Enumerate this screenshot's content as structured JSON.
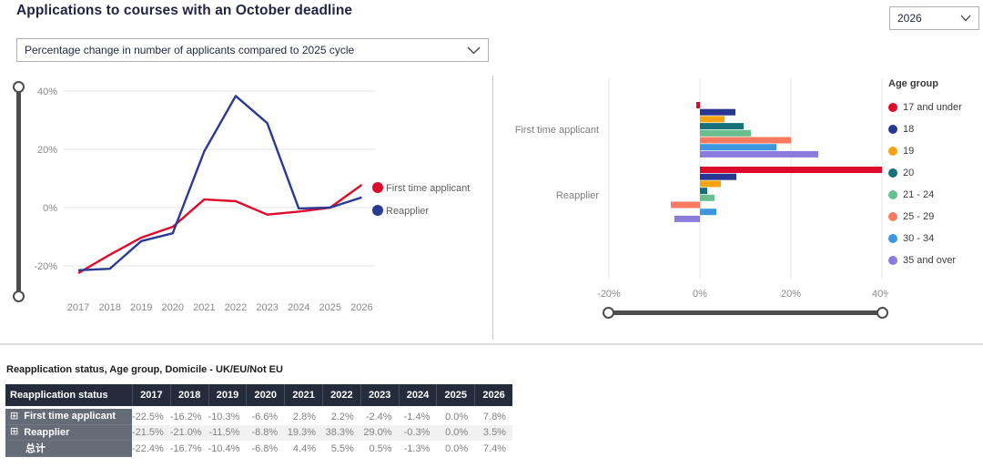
{
  "header": {
    "title": "Applications to courses with an October deadline",
    "year_filter_value": "2026",
    "metric_filter_value": "Percentage change in number of applicants compared to 2025 cycle"
  },
  "chart_data": [
    {
      "type": "line",
      "categories": [
        "2017",
        "2018",
        "2019",
        "2020",
        "2021",
        "2022",
        "2023",
        "2024",
        "2025",
        "2026"
      ],
      "series": [
        {
          "name": "First time applicant",
          "color": "#de0a2b",
          "values": [
            -22.5,
            -16.2,
            -10.3,
            -6.6,
            2.8,
            2.2,
            -2.4,
            -1.4,
            0.0,
            7.8
          ]
        },
        {
          "name": "Reapplier",
          "color": "#2b3a92",
          "values": [
            -21.5,
            -21.0,
            -11.5,
            -8.8,
            19.3,
            38.3,
            29.0,
            -0.3,
            0.0,
            3.5
          ]
        }
      ],
      "yticks": [
        {
          "value": 40,
          "label": "40%"
        },
        {
          "value": 20,
          "label": "20%"
        },
        {
          "value": 0,
          "label": "0%"
        },
        {
          "value": -20,
          "label": "-20%"
        }
      ],
      "ylim": [
        -27,
        42
      ],
      "unit": "%",
      "grid": "horizontal",
      "legend_position": "right"
    },
    {
      "type": "bar",
      "orientation": "horizontal",
      "categories": [
        "First time applicant",
        "Reapplier"
      ],
      "legend_title": "Age group",
      "series": [
        {
          "name": "17 and under",
          "color": "#de0a2b",
          "values": [
            -0.8,
            40.0
          ]
        },
        {
          "name": "18",
          "color": "#2a3792",
          "values": [
            7.8,
            8.0
          ]
        },
        {
          "name": "19",
          "color": "#f5a30f",
          "values": [
            5.4,
            4.6
          ]
        },
        {
          "name": "20",
          "color": "#187079",
          "values": [
            9.6,
            1.6
          ]
        },
        {
          "name": "21 - 24",
          "color": "#68be8d",
          "values": [
            11.2,
            3.2
          ]
        },
        {
          "name": "25 - 29",
          "color": "#fa7a61",
          "values": [
            20.0,
            -6.4
          ]
        },
        {
          "name": "30 - 34",
          "color": "#3d97e0",
          "values": [
            16.8,
            3.6
          ]
        },
        {
          "name": "35 and over",
          "color": "#8a7cdd",
          "values": [
            26.0,
            -5.6
          ]
        }
      ],
      "xticks": [
        {
          "value": -20,
          "label": "-20%"
        },
        {
          "value": 0,
          "label": "0%"
        },
        {
          "value": 20,
          "label": "20%"
        },
        {
          "value": 40,
          "label": "40%"
        }
      ],
      "xlim": [
        -20,
        40
      ],
      "unit": "%",
      "grid": "vertical",
      "legend_position": "right"
    }
  ],
  "table": {
    "title": "Reapplication status, Age group, Domicile - UK/EU/Not EU",
    "columns": [
      "Reapplication status",
      "2017",
      "2018",
      "2019",
      "2020",
      "2021",
      "2022",
      "2023",
      "2024",
      "2025",
      "2026"
    ],
    "rows": [
      {
        "label": "First time applicant",
        "expandable": true,
        "values": [
          "-22.5%",
          "-16.2%",
          "-10.3%",
          "-6.6%",
          "2.8%",
          "2.2%",
          "-2.4%",
          "-1.4%",
          "0.0%",
          "7.8%"
        ]
      },
      {
        "label": "Reapplier",
        "expandable": true,
        "values": [
          "-21.5%",
          "-21.0%",
          "-11.5%",
          "-8.8%",
          "19.3%",
          "38.3%",
          "29.0%",
          "-0.3%",
          "0.0%",
          "3.5%"
        ]
      },
      {
        "label": "总计",
        "expandable": false,
        "values": [
          "-22.4%",
          "-16.7%",
          "-10.4%",
          "-6.8%",
          "4.4%",
          "5.5%",
          "0.5%",
          "-1.3%",
          "0.0%",
          "7.4%"
        ]
      }
    ]
  }
}
